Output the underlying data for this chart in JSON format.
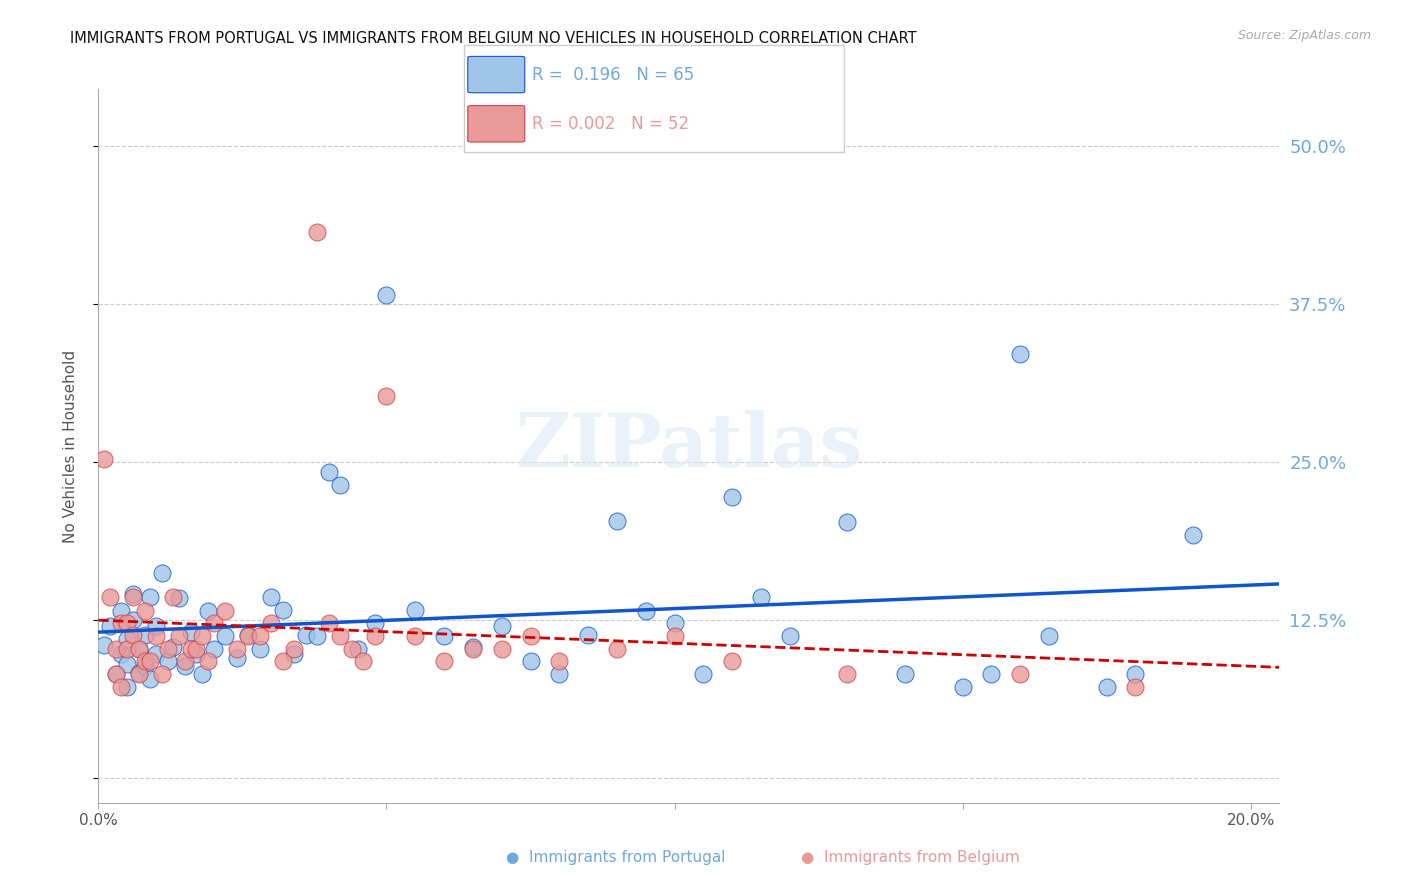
{
  "title": "IMMIGRANTS FROM PORTUGAL VS IMMIGRANTS FROM BELGIUM NO VEHICLES IN HOUSEHOLD CORRELATION CHART",
  "source": "Source: ZipAtlas.com",
  "ylabel": "No Vehicles in Household",
  "y_ticks": [
    0.0,
    0.125,
    0.25,
    0.375,
    0.5
  ],
  "y_tick_labels": [
    "",
    "12.5%",
    "25.0%",
    "37.5%",
    "50.0%"
  ],
  "xlim": [
    0.0,
    0.205
  ],
  "ylim": [
    -0.02,
    0.545
  ],
  "portugal_color": "#9fc5e8",
  "portugal_edge_color": "#1155cc",
  "belgium_color": "#ea9999",
  "belgium_edge_color": "#cc4444",
  "portugal_line_color": "#1155cc",
  "belgium_line_color": "#cc0000",
  "watermark": "ZIPatlas",
  "legend_label_portugal": "Immigrants from Portugal",
  "legend_label_belgium": "Immigrants from Belgium",
  "legend_R_portugal": "R =  0.196   N = 65",
  "legend_R_belgium": "R = 0.002   N = 52",
  "portugal_color_text": "#6fa8dc",
  "belgium_color_text": "#ea9999",
  "portugal_x": [
    0.001,
    0.002,
    0.003,
    0.004,
    0.004,
    0.005,
    0.005,
    0.005,
    0.006,
    0.006,
    0.007,
    0.007,
    0.008,
    0.008,
    0.009,
    0.009,
    0.01,
    0.01,
    0.011,
    0.012,
    0.013,
    0.014,
    0.015,
    0.016,
    0.017,
    0.018,
    0.019,
    0.02,
    0.022,
    0.024,
    0.026,
    0.028,
    0.03,
    0.032,
    0.034,
    0.036,
    0.038,
    0.04,
    0.042,
    0.045,
    0.048,
    0.05,
    0.055,
    0.06,
    0.065,
    0.07,
    0.075,
    0.08,
    0.085,
    0.09,
    0.095,
    0.1,
    0.105,
    0.11,
    0.115,
    0.12,
    0.13,
    0.14,
    0.15,
    0.155,
    0.16,
    0.165,
    0.175,
    0.18,
    0.19
  ],
  "portugal_y": [
    0.105,
    0.12,
    0.082,
    0.098,
    0.132,
    0.09,
    0.11,
    0.072,
    0.125,
    0.145,
    0.083,
    0.102,
    0.088,
    0.113,
    0.078,
    0.143,
    0.098,
    0.12,
    0.162,
    0.092,
    0.103,
    0.142,
    0.088,
    0.115,
    0.098,
    0.082,
    0.132,
    0.102,
    0.112,
    0.095,
    0.113,
    0.102,
    0.143,
    0.133,
    0.098,
    0.113,
    0.112,
    0.242,
    0.232,
    0.102,
    0.122,
    0.382,
    0.133,
    0.112,
    0.103,
    0.12,
    0.092,
    0.082,
    0.113,
    0.203,
    0.132,
    0.122,
    0.082,
    0.222,
    0.143,
    0.112,
    0.202,
    0.082,
    0.072,
    0.082,
    0.335,
    0.112,
    0.072,
    0.082,
    0.192
  ],
  "belgium_x": [
    0.001,
    0.002,
    0.003,
    0.003,
    0.004,
    0.004,
    0.005,
    0.005,
    0.006,
    0.006,
    0.007,
    0.007,
    0.008,
    0.008,
    0.009,
    0.01,
    0.011,
    0.012,
    0.013,
    0.014,
    0.015,
    0.016,
    0.017,
    0.018,
    0.019,
    0.02,
    0.022,
    0.024,
    0.026,
    0.028,
    0.03,
    0.032,
    0.034,
    0.038,
    0.04,
    0.042,
    0.044,
    0.046,
    0.048,
    0.05,
    0.055,
    0.06,
    0.065,
    0.07,
    0.075,
    0.08,
    0.09,
    0.1,
    0.11,
    0.13,
    0.16,
    0.18
  ],
  "belgium_y": [
    0.252,
    0.143,
    0.102,
    0.082,
    0.122,
    0.072,
    0.122,
    0.102,
    0.143,
    0.113,
    0.082,
    0.102,
    0.132,
    0.092,
    0.092,
    0.112,
    0.082,
    0.102,
    0.143,
    0.112,
    0.092,
    0.102,
    0.102,
    0.112,
    0.092,
    0.122,
    0.132,
    0.102,
    0.112,
    0.112,
    0.122,
    0.092,
    0.102,
    0.432,
    0.122,
    0.112,
    0.102,
    0.092,
    0.112,
    0.302,
    0.112,
    0.092,
    0.102,
    0.102,
    0.112,
    0.092,
    0.102,
    0.112,
    0.092,
    0.082,
    0.082,
    0.072
  ]
}
